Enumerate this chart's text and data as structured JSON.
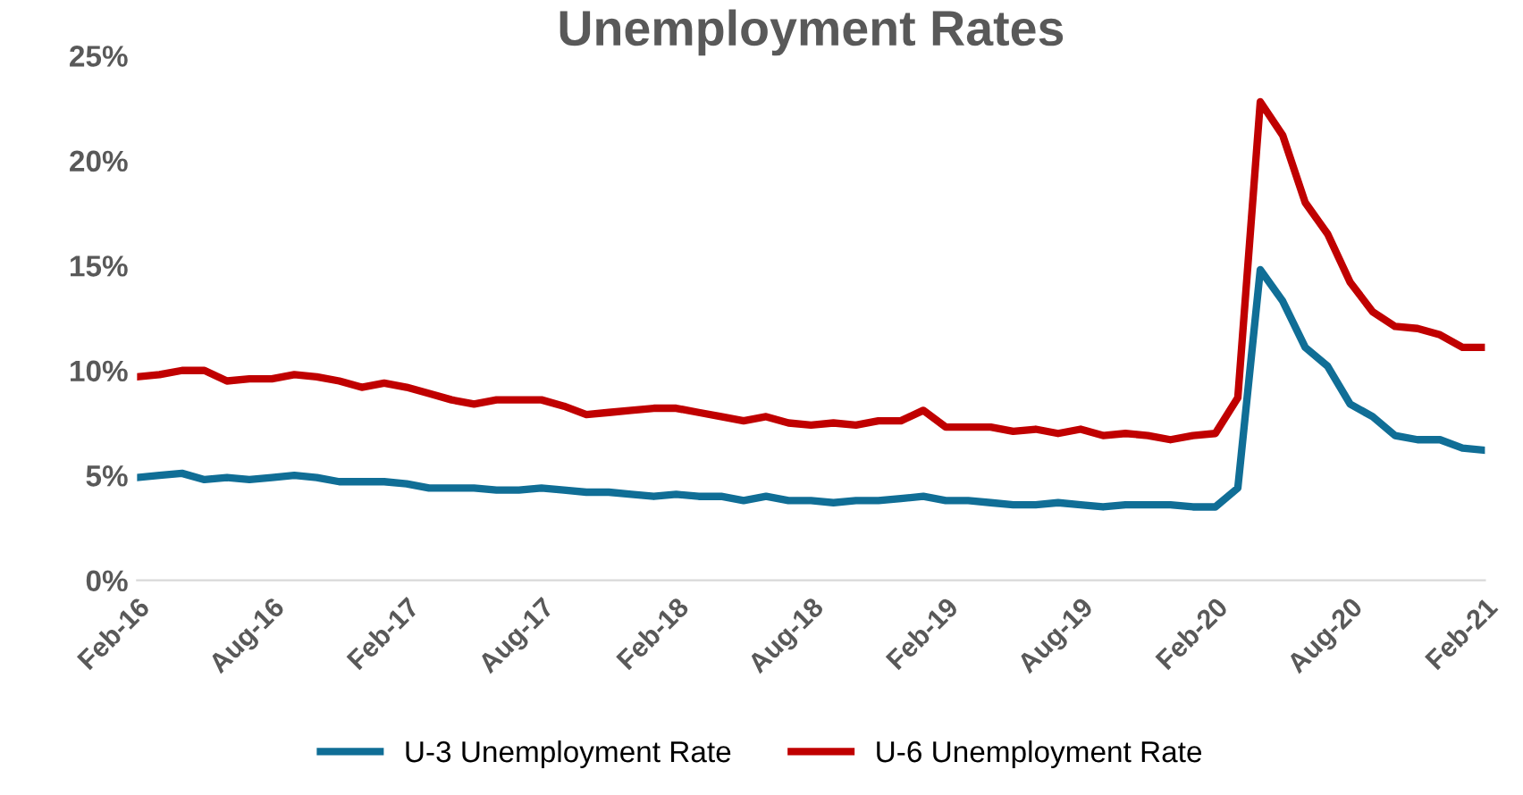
{
  "chart_data": {
    "type": "line",
    "title": "Unemployment Rates",
    "categories": [
      "Feb-16",
      null,
      null,
      null,
      null,
      null,
      "Aug-16",
      null,
      null,
      null,
      null,
      null,
      "Feb-17",
      null,
      null,
      null,
      null,
      null,
      "Aug-17",
      null,
      null,
      null,
      null,
      null,
      "Feb-18",
      null,
      null,
      null,
      null,
      null,
      "Aug-18",
      null,
      null,
      null,
      null,
      null,
      "Feb-19",
      null,
      null,
      null,
      null,
      null,
      "Aug-19",
      null,
      null,
      null,
      null,
      null,
      "Feb-20",
      null,
      null,
      null,
      null,
      null,
      "Aug-20",
      null,
      null,
      null,
      null,
      null,
      "Feb-21"
    ],
    "series": [
      {
        "name": "U-3 Unemployment Rate",
        "color": "#106e96",
        "values": [
          4.9,
          5.0,
          5.1,
          4.8,
          4.9,
          4.8,
          4.9,
          5.0,
          4.9,
          4.7,
          4.7,
          4.7,
          4.6,
          4.4,
          4.4,
          4.4,
          4.3,
          4.3,
          4.4,
          4.3,
          4.2,
          4.2,
          4.1,
          4.0,
          4.1,
          4.0,
          4.0,
          3.8,
          4.0,
          3.8,
          3.8,
          3.7,
          3.8,
          3.8,
          3.9,
          4.0,
          3.8,
          3.8,
          3.7,
          3.6,
          3.6,
          3.7,
          3.6,
          3.5,
          3.6,
          3.6,
          3.6,
          3.5,
          3.5,
          4.4,
          14.8,
          13.3,
          11.1,
          10.2,
          8.4,
          7.8,
          6.9,
          6.7,
          6.7,
          6.3,
          6.2
        ]
      },
      {
        "name": "U-6 Unemployment Rate",
        "color": "#c00000",
        "values": [
          9.7,
          9.8,
          10.0,
          10.0,
          9.5,
          9.6,
          9.6,
          9.8,
          9.7,
          9.5,
          9.2,
          9.4,
          9.2,
          8.9,
          8.6,
          8.4,
          8.6,
          8.6,
          8.6,
          8.3,
          7.9,
          8.0,
          8.1,
          8.2,
          8.2,
          8.0,
          7.8,
          7.6,
          7.8,
          7.5,
          7.4,
          7.5,
          7.4,
          7.6,
          7.6,
          8.1,
          7.3,
          7.3,
          7.3,
          7.1,
          7.2,
          7.0,
          7.2,
          6.9,
          7.0,
          6.9,
          6.7,
          6.9,
          7.0,
          8.7,
          22.8,
          21.2,
          18.0,
          16.5,
          14.2,
          12.8,
          12.1,
          12.0,
          11.7,
          11.1,
          11.1
        ]
      }
    ],
    "ylim": [
      0,
      25
    ],
    "yticks": [
      {
        "value": 0,
        "label": "0%"
      },
      {
        "value": 5,
        "label": "5%"
      },
      {
        "value": 10,
        "label": "10%"
      },
      {
        "value": 15,
        "label": "15%"
      },
      {
        "value": 20,
        "label": "20%"
      },
      {
        "value": 25,
        "label": "25%"
      }
    ],
    "legend": "bottom",
    "marker": "none",
    "line_style": "solid"
  }
}
